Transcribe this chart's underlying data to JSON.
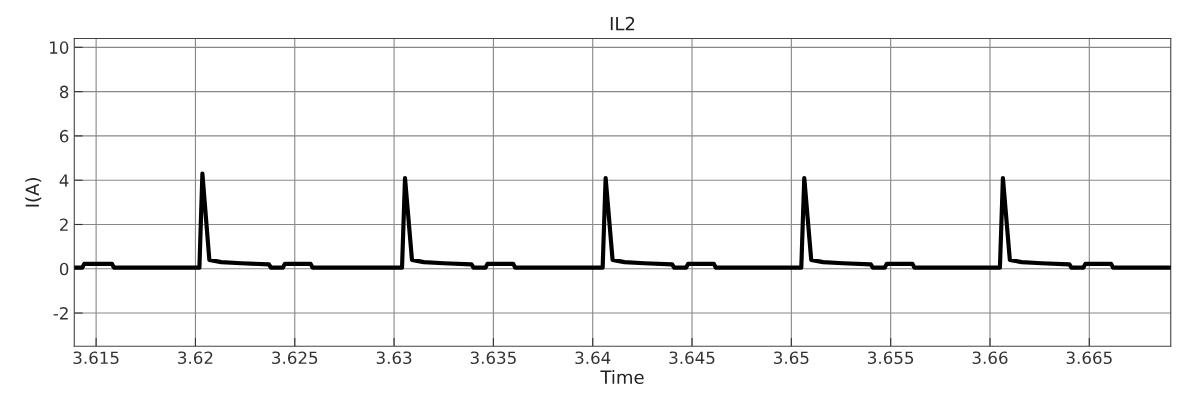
{
  "chart_data": {
    "type": "line",
    "title": "IL2",
    "xlabel": "Time",
    "ylabel": "I(A)",
    "xlim": [
      3.6139,
      3.6691
    ],
    "ylim": [
      -3.5,
      10.4
    ],
    "xticks": [
      3.615,
      3.62,
      3.625,
      3.63,
      3.635,
      3.64,
      3.645,
      3.65,
      3.655,
      3.66,
      3.665
    ],
    "yticks": [
      -2,
      0,
      2,
      4,
      6,
      8,
      10
    ],
    "grid": true,
    "marker": "none",
    "line_style": "solid",
    "series": [
      {
        "color": "#000000",
        "x": [
          3.6139,
          3.6143,
          3.6144,
          3.6158,
          3.6159,
          3.6202,
          3.62035,
          3.6207,
          3.6213,
          3.6223,
          3.6237,
          3.6238,
          3.6244,
          3.6245,
          3.6258,
          3.6259,
          3.6304,
          3.63055,
          3.6309,
          3.6315,
          3.6325,
          3.6339,
          3.634,
          3.6346,
          3.6347,
          3.636,
          3.6361,
          3.6405,
          3.64065,
          3.641,
          3.6416,
          3.6426,
          3.644,
          3.6441,
          3.6447,
          3.6448,
          3.6461,
          3.6462,
          3.6505,
          3.65065,
          3.651,
          3.6516,
          3.6526,
          3.654,
          3.6541,
          3.6547,
          3.6548,
          3.6561,
          3.6562,
          3.6605,
          3.66065,
          3.661,
          3.6616,
          3.6626,
          3.664,
          3.6641,
          3.6647,
          3.6648,
          3.6661,
          3.6662,
          3.6691
        ],
        "values": [
          0.05,
          0.05,
          0.22,
          0.22,
          0.05,
          0.05,
          4.3,
          0.4,
          0.3,
          0.25,
          0.2,
          0.05,
          0.05,
          0.22,
          0.22,
          0.05,
          0.05,
          4.1,
          0.4,
          0.3,
          0.25,
          0.2,
          0.05,
          0.05,
          0.22,
          0.22,
          0.05,
          0.05,
          4.1,
          0.4,
          0.3,
          0.25,
          0.2,
          0.05,
          0.05,
          0.22,
          0.22,
          0.05,
          0.05,
          4.1,
          0.4,
          0.3,
          0.25,
          0.2,
          0.05,
          0.05,
          0.22,
          0.22,
          0.05,
          0.05,
          4.1,
          0.4,
          0.3,
          0.25,
          0.2,
          0.05,
          0.05,
          0.22,
          0.22,
          0.05,
          0.05
        ]
      }
    ]
  }
}
